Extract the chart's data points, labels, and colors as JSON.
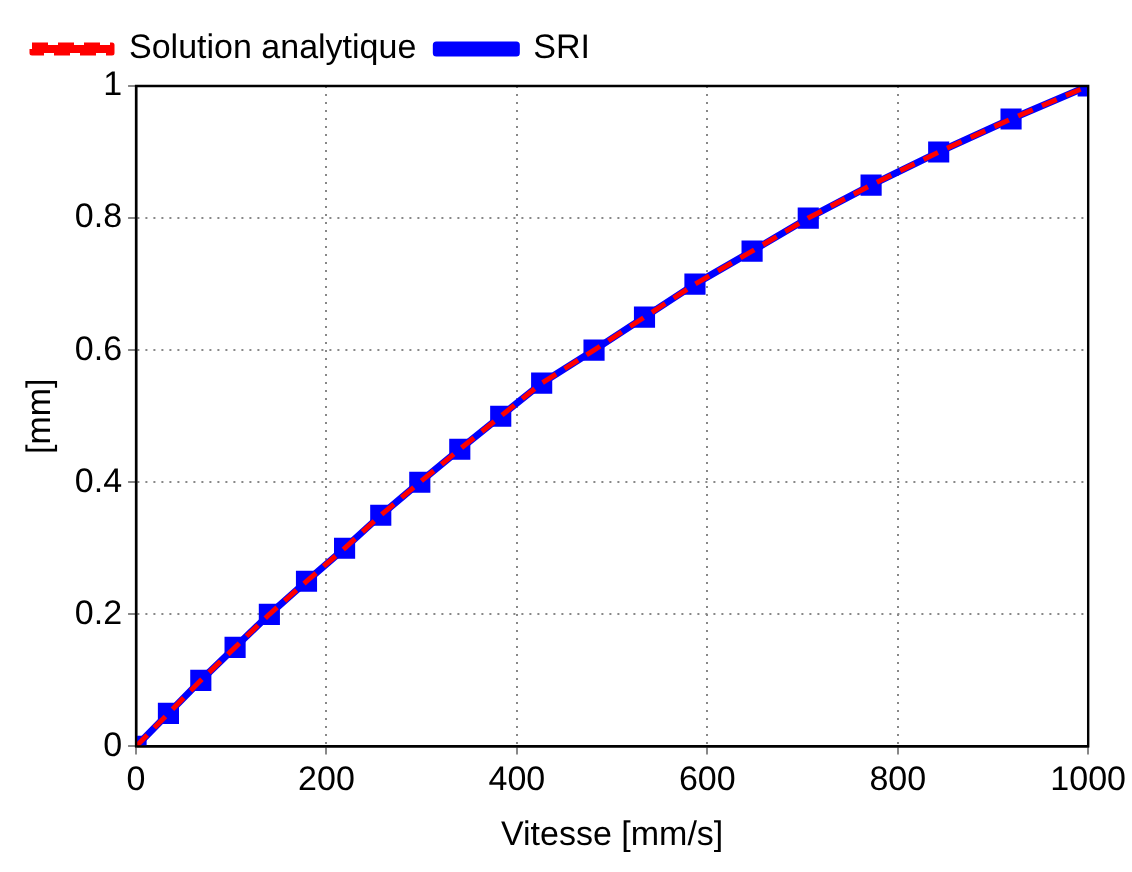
{
  "chart_data": {
    "type": "line",
    "xlabel": "Vitesse [mm/s]",
    "ylabel": "[mm]",
    "x": [
      0,
      34,
      68,
      104,
      140,
      179,
      219,
      257,
      298,
      340,
      383,
      426,
      481,
      534,
      587,
      647,
      706,
      772,
      843,
      919,
      1000
    ],
    "series": [
      {
        "name": "SRI",
        "color": "#0000ff",
        "marker": "square",
        "line_style": "solid",
        "values": [
          0,
          0.05,
          0.1,
          0.15,
          0.2,
          0.25,
          0.3,
          0.35,
          0.4,
          0.45,
          0.5,
          0.55,
          0.6,
          0.65,
          0.7,
          0.75,
          0.8,
          0.85,
          0.9,
          0.95,
          1
        ]
      },
      {
        "name": "Solution analytique",
        "color": "#ff0000",
        "marker": "none",
        "line_style": "dashed",
        "values": [
          0,
          0.05,
          0.1,
          0.15,
          0.2,
          0.25,
          0.3,
          0.35,
          0.4,
          0.45,
          0.5,
          0.55,
          0.6,
          0.65,
          0.7,
          0.75,
          0.8,
          0.85,
          0.9,
          0.95,
          1
        ]
      }
    ],
    "xlim": [
      0,
      1000
    ],
    "xticks": [
      0,
      200,
      400,
      600,
      800,
      1000
    ],
    "ylim": [
      0,
      1
    ],
    "yticks": [
      0,
      0.2,
      0.4,
      0.6,
      0.8,
      1
    ],
    "grid": true,
    "legend": "top left"
  }
}
